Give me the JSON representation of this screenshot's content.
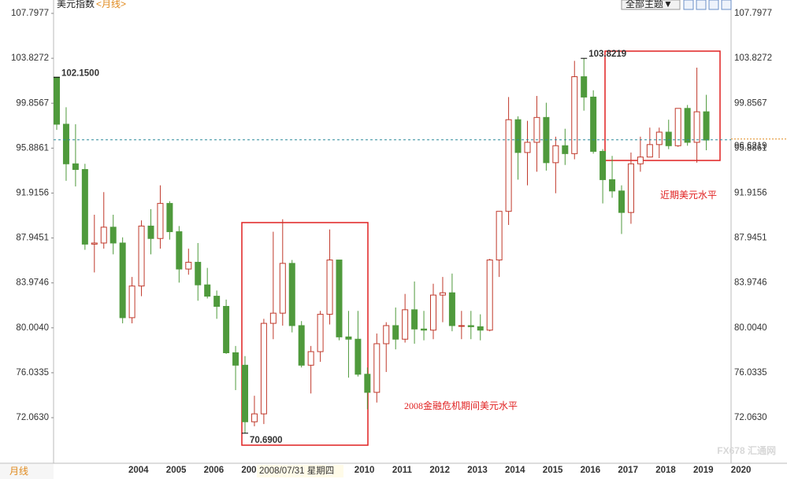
{
  "chart_data": {
    "type": "candlestick",
    "title": "美元指数",
    "subtitle": "<月线>",
    "menu": "全部主题▼",
    "period_label": "月线",
    "cursor_label": "2008/07/31 星期四",
    "watermark": "FX678 汇通网",
    "up_color": "#c0392b",
    "down_color": "#4f9a3c",
    "ylim": [
      68.31,
      108.98
    ],
    "yticks": [
      {
        "value": 72.063,
        "label": "72.0630"
      },
      76.0335,
      {
        "value": 80.004,
        "label": "80.0040"
      },
      83.9746,
      87.9451,
      91.9156,
      95.8861,
      99.8567,
      103.8272,
      107.7977
    ],
    "last_price": 96.6219,
    "annotations": [
      {
        "value": 102.15,
        "label": "102.1500"
      },
      103.8219,
      {
        "value": 70.69,
        "label": "70.6900"
      }
    ],
    "box_labels": [
      "近期美元水平",
      "2008金融危机期间美元水平"
    ],
    "categories": [
      null,
      null,
      null,
      null,
      "2004",
      null,
      null,
      null,
      "2005",
      null,
      null,
      null,
      "2006",
      null,
      null,
      null,
      "2007",
      null,
      null,
      null,
      "2008",
      null,
      null,
      null,
      "2009",
      null,
      null,
      null,
      "2010",
      null,
      null,
      null,
      "2011",
      null,
      null,
      null,
      "2012",
      null,
      null,
      null,
      "2013",
      null,
      null,
      null,
      "2014",
      null,
      null,
      null,
      "2015",
      null,
      null,
      null,
      "2016",
      null,
      null,
      null,
      "2017",
      null,
      null,
      null,
      "2018",
      null,
      null,
      null,
      "2019",
      null,
      null,
      null,
      "2020",
      null
    ],
    "candles": [
      [
        102.15,
        102.15,
        97.5,
        98
      ],
      [
        98,
        99.5,
        93,
        94.5
      ],
      [
        94.5,
        98,
        92.5,
        94
      ],
      [
        94,
        94.5,
        86.9,
        87.4
      ],
      [
        87.4,
        90,
        84.9,
        87.5
      ],
      [
        87.5,
        92,
        87,
        88.9
      ],
      [
        88.9,
        90,
        86.5,
        87.5
      ],
      [
        87.5,
        88,
        80.4,
        80.9
      ],
      [
        80.9,
        84.5,
        80.4,
        83.7
      ],
      [
        83.7,
        89.5,
        82.8,
        89
      ],
      [
        89,
        90.5,
        86.5,
        87.9
      ],
      [
        87.9,
        92.6,
        87,
        91
      ],
      [
        91,
        91.2,
        87.8,
        88.5
      ],
      [
        88.5,
        89,
        84,
        85.2
      ],
      [
        85.2,
        87,
        84.7,
        85.8
      ],
      [
        85.8,
        87.5,
        82.4,
        83.8
      ],
      [
        83.8,
        85.3,
        82.6,
        82.8
      ],
      [
        82.8,
        83.3,
        80.8,
        81.9
      ],
      [
        81.9,
        82.5,
        77.7,
        77.8
      ],
      [
        77.8,
        78.4,
        74.5,
        76.7
      ],
      [
        76.7,
        77.5,
        70.69,
        71.7
      ],
      [
        71.7,
        74,
        71.3,
        72.4
      ],
      [
        72.4,
        80.8,
        71.5,
        80.4
      ],
      [
        80.4,
        88.5,
        79,
        81.3
      ],
      [
        81.3,
        89.6,
        80.2,
        85.7
      ],
      [
        85.7,
        86,
        79.6,
        80.2
      ],
      [
        80.2,
        80.6,
        76.5,
        76.7
      ],
      [
        76.7,
        78.4,
        74.2,
        77.9
      ],
      [
        77.9,
        81.5,
        77,
        81.2
      ],
      [
        81.2,
        88.7,
        80.3,
        86
      ],
      [
        86,
        86,
        78.9,
        79.2
      ],
      [
        79.2,
        81.5,
        75.6,
        79
      ],
      [
        79,
        81.5,
        75.7,
        75.9
      ],
      [
        75.9,
        76.5,
        72.8,
        74.3
      ],
      [
        74.3,
        79.5,
        73.4,
        78.6
      ],
      [
        78.6,
        80.5,
        76.1,
        80.2
      ],
      [
        80.2,
        81.8,
        78.1,
        79
      ],
      [
        79,
        83,
        78.7,
        81.6
      ],
      [
        81.6,
        84.1,
        78.6,
        79.9
      ],
      [
        79.9,
        81.5,
        78.9,
        79.8
      ],
      [
        79.8,
        83.9,
        79,
        82.9
      ],
      [
        82.9,
        84.5,
        80.5,
        83.1
      ],
      [
        83.1,
        84.8,
        79.7,
        80.2
      ],
      [
        80.2,
        81.5,
        79,
        80.2
      ],
      [
        80.2,
        81.5,
        79,
        80.1
      ],
      [
        80.1,
        81.2,
        78.9,
        79.8
      ],
      [
        79.8,
        86.1,
        79.7,
        86
      ],
      [
        86,
        90.2,
        84.5,
        90.3
      ],
      [
        90.3,
        100.4,
        89.1,
        98.4
      ],
      [
        98.4,
        98.7,
        93.1,
        95.5
      ],
      [
        95.5,
        98.3,
        92.6,
        96.4
      ],
      [
        96.4,
        100.5,
        93.8,
        98.6
      ],
      [
        98.6,
        99.9,
        93.9,
        94.6
      ],
      [
        94.6,
        96.9,
        91.9,
        96.1
      ],
      [
        96.1,
        97.6,
        94.4,
        95.4
      ],
      [
        95.4,
        103.6,
        94.9,
        102.2
      ],
      [
        102.2,
        103.8219,
        99.2,
        100.4
      ],
      [
        100.4,
        101,
        95.4,
        95.6
      ],
      [
        95.6,
        95.8,
        91,
        93.1
      ],
      [
        93.1,
        95.2,
        91.5,
        92.1
      ],
      [
        92.1,
        92.6,
        88.3,
        90.2
      ],
      [
        90.2,
        95.5,
        89.2,
        94.5
      ],
      [
        94.5,
        96.9,
        93.8,
        95.1
      ],
      [
        95.1,
        97.7,
        95.2,
        96.2
      ],
      [
        96.2,
        97.7,
        95,
        97.3
      ],
      [
        97.3,
        98.4,
        95.8,
        96.1
      ],
      [
        96.1,
        99.4,
        96,
        99.4
      ],
      [
        99.4,
        99.7,
        96.1,
        96.4
      ],
      [
        96.4,
        103,
        94.6,
        99.1
      ],
      [
        99.1,
        100.6,
        95.7,
        96.6
      ]
    ]
  }
}
